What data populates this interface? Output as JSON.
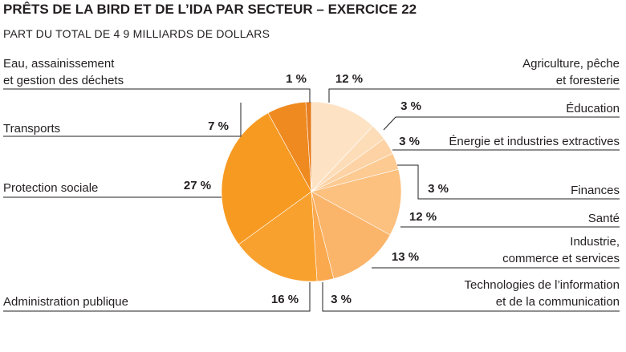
{
  "chart_data": {
    "type": "pie",
    "title": "PRÊTS DE LA BIRD ET DE L’IDA PAR SECTEUR – EXERCICE 22",
    "subtitle": "PART DU TOTAL DE 4 9 MILLIARDS DE DOLLARS",
    "slices": [
      {
        "label": [
          "Agriculture, pêche",
          "et foresterie"
        ],
        "value": 12,
        "text": "12 %",
        "color": "#fde3c4"
      },
      {
        "label": [
          "Éducation"
        ],
        "value": 3,
        "text": "3 %",
        "color": "#fddcb8"
      },
      {
        "label": [
          "Énergie et industries extractives"
        ],
        "value": 3,
        "text": "3 %",
        "color": "#fdd3a5"
      },
      {
        "label": [
          "Finances"
        ],
        "value": 3,
        "text": "3 %",
        "color": "#fdca92"
      },
      {
        "label": [
          "Santé"
        ],
        "value": 12,
        "text": "12 %",
        "color": "#fcc07f"
      },
      {
        "label": [
          "Industrie,",
          "commerce et services"
        ],
        "value": 13,
        "text": "13 %",
        "color": "#fbb56b"
      },
      {
        "label": [
          "Technologies de l’information",
          "et de la communication"
        ],
        "value": 3,
        "text": "3 %",
        "color": "#faa94f"
      },
      {
        "label": [
          "Administration publique"
        ],
        "value": 16,
        "text": "16 %",
        "color": "#f9a12f"
      },
      {
        "label": [
          "Protection sociale"
        ],
        "value": 27,
        "text": "27 %",
        "color": "#f79a22"
      },
      {
        "label": [
          "Transports"
        ],
        "value": 7,
        "text": "7 %",
        "color": "#ef8a20"
      },
      {
        "label": [
          "Eau, assainissement",
          "et gestion des déchets"
        ],
        "value": 1,
        "text": "1 %",
        "color": "#e67e22"
      }
    ]
  }
}
